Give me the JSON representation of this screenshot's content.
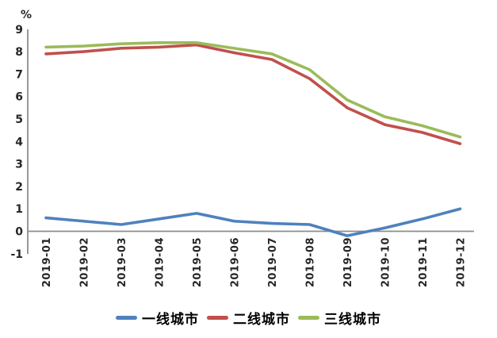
{
  "chart_data": {
    "type": "line",
    "title": "",
    "unit_label": "%",
    "categories": [
      "2019-01",
      "2019-02",
      "2019-03",
      "2019-04",
      "2019-05",
      "2019-06",
      "2019-07",
      "2019-08",
      "2019-09",
      "2019-10",
      "2019-11",
      "2019-12"
    ],
    "series": [
      {
        "name": "一线城市",
        "color": "#4F81BD",
        "values": [
          0.6,
          0.45,
          0.3,
          0.55,
          0.8,
          0.45,
          0.35,
          0.3,
          -0.2,
          0.15,
          0.55,
          1.0
        ]
      },
      {
        "name": "二线城市",
        "color": "#C0504D",
        "values": [
          7.9,
          8.0,
          8.15,
          8.2,
          8.3,
          7.95,
          7.65,
          6.8,
          5.5,
          4.75,
          4.4,
          3.9
        ]
      },
      {
        "name": "三线城市",
        "color": "#9BBB59",
        "values": [
          8.2,
          8.25,
          8.35,
          8.4,
          8.4,
          8.15,
          7.9,
          7.2,
          5.85,
          5.1,
          4.7,
          4.2
        ]
      }
    ],
    "ylim": [
      -1,
      9
    ],
    "y_ticks": [
      9,
      8,
      7,
      6,
      5,
      4,
      3,
      2,
      1,
      0,
      -1
    ],
    "grid": false,
    "legend_position": "bottom",
    "x_label_rotation_degrees": 90,
    "axis_color": "#8C8C8C",
    "label_color": "#262626"
  }
}
